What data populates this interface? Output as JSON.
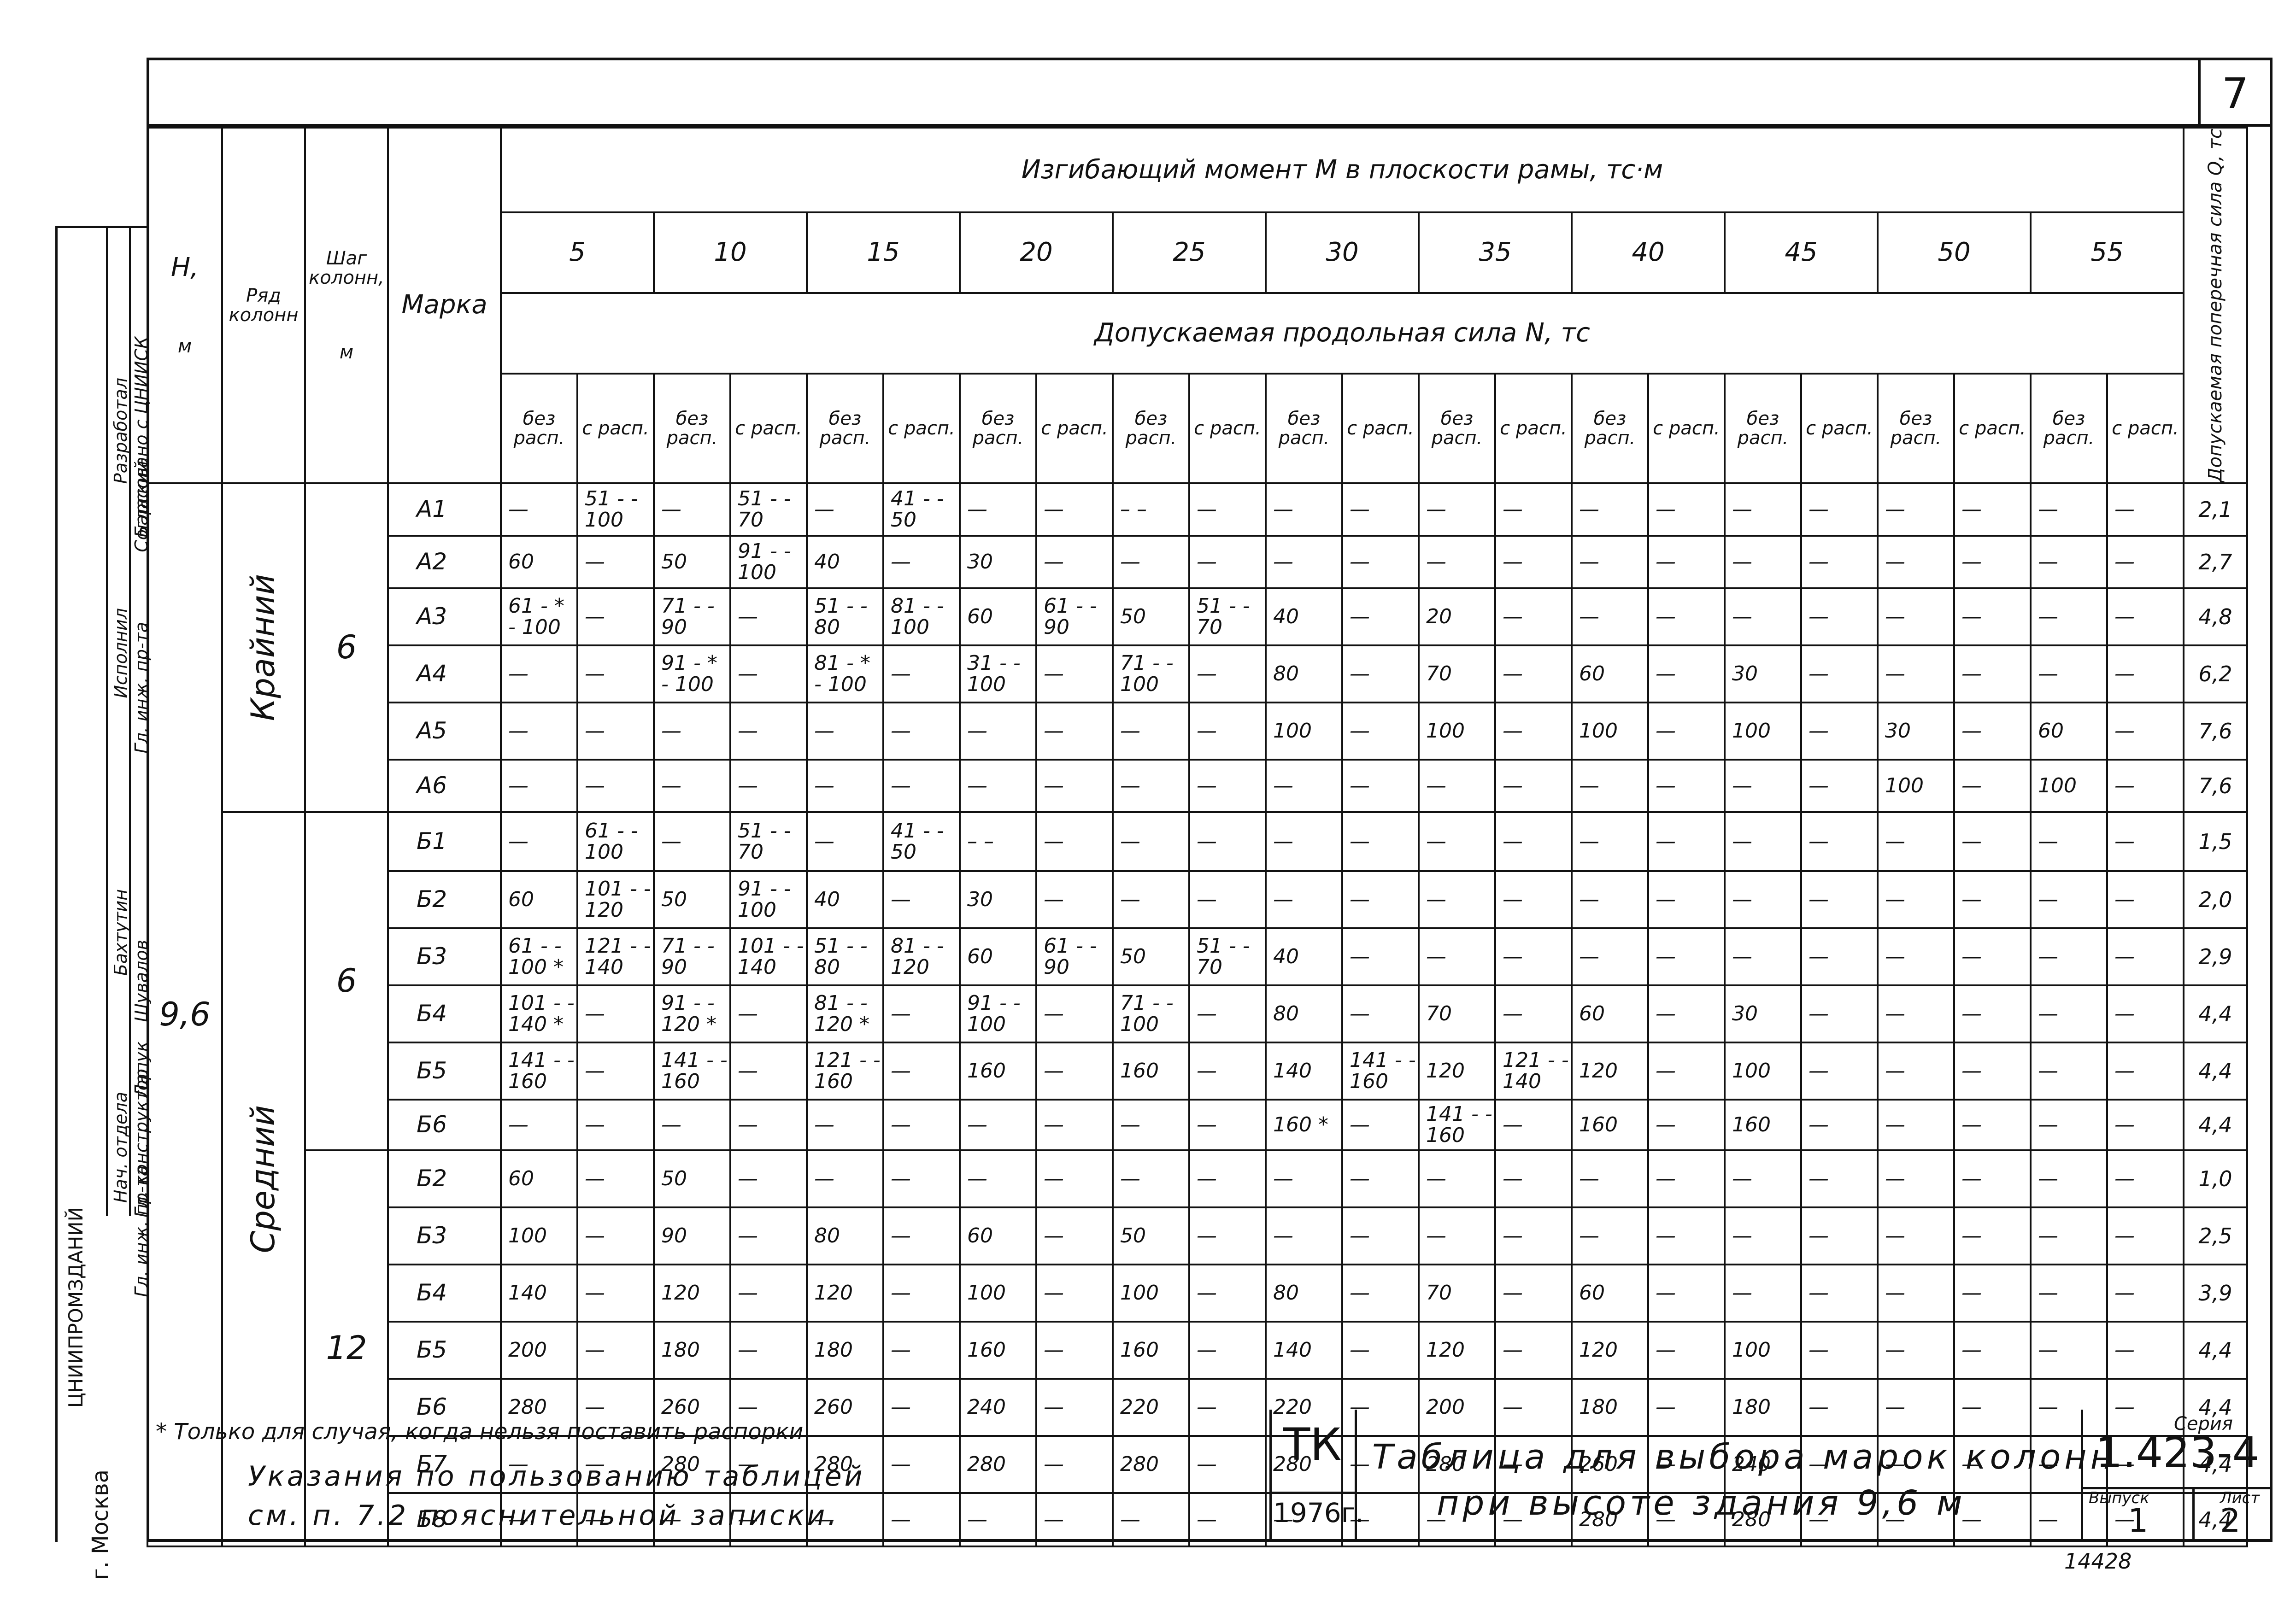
{
  "page_number": "7",
  "header": {
    "h_label": "H,",
    "h_unit": "м",
    "row_label": "Ряд колонн",
    "step_label": "Шаг колонн,",
    "step_unit": "м",
    "mark_label": "Марка",
    "moment_title": "Изгибающий момент M в плоскости рамы, тс·м",
    "force_title": "Допускаемая продольная сила N, тс",
    "q_title": "Допускаемая поперечная сила Q, тс",
    "moments": [
      "5",
      "10",
      "15",
      "20",
      "25",
      "30",
      "35",
      "40",
      "45",
      "50",
      "55"
    ],
    "sub_no": "без расп.",
    "sub_with": "с расп."
  },
  "h_value": "9,6",
  "groups": [
    {
      "row": "Крайний",
      "step": "6"
    },
    {
      "row": "Средний",
      "step": "6"
    },
    {
      "row": "",
      "step": "12"
    }
  ],
  "rows": [
    {
      "mark": "А1",
      "cells": [
        "—",
        "51 - - 100",
        "—",
        "51 - - 70",
        "—",
        "41 - - 50",
        "—",
        "—",
        "– –",
        "—",
        "—",
        "—",
        "—",
        "—",
        "—",
        "—",
        "—",
        "—",
        "—",
        "—",
        "—",
        "—"
      ],
      "q": "2,1"
    },
    {
      "mark": "А2",
      "cells": [
        "60",
        "—",
        "50",
        "91 - - 100",
        "40",
        "—",
        "30",
        "—",
        "—",
        "—",
        "—",
        "—",
        "—",
        "—",
        "—",
        "—",
        "—",
        "—",
        "—",
        "—",
        "—",
        "—"
      ],
      "q": "2,7"
    },
    {
      "mark": "А3",
      "cells": [
        "61 - * - 100",
        "—",
        "71 - - 90",
        "—",
        "51 - - 80",
        "81 - - 100",
        "60",
        "61 - - 90",
        "50",
        "51 - - 70",
        "40",
        "—",
        "20",
        "—",
        "—",
        "—",
        "—",
        "—",
        "—",
        "—",
        "—",
        "—"
      ],
      "q": "4,8"
    },
    {
      "mark": "А4",
      "cells": [
        "—",
        "—",
        "91 - * - 100",
        "—",
        "81 - * - 100",
        "—",
        "31 - - 100",
        "—",
        "71 - - 100",
        "—",
        "80",
        "—",
        "70",
        "—",
        "60",
        "—",
        "30",
        "—",
        "—",
        "—",
        "—",
        "—"
      ],
      "q": "6,2"
    },
    {
      "mark": "А5",
      "cells": [
        "—",
        "—",
        "—",
        "—",
        "—",
        "—",
        "—",
        "—",
        "—",
        "—",
        "100",
        "—",
        "100",
        "—",
        "100",
        "—",
        "100",
        "—",
        "30",
        "—",
        "60",
        "—"
      ],
      "q": "7,6"
    },
    {
      "mark": "А6",
      "cells": [
        "—",
        "—",
        "—",
        "—",
        "—",
        "—",
        "—",
        "—",
        "—",
        "—",
        "—",
        "—",
        "—",
        "—",
        "—",
        "—",
        "—",
        "—",
        "100",
        "—",
        "100",
        "—"
      ],
      "q": "7,6"
    },
    {
      "mark": "Б1",
      "cells": [
        "—",
        "61 - - 100",
        "—",
        "51 - - 70",
        "—",
        "41 - - 50",
        "– –",
        "—",
        "—",
        "—",
        "—",
        "—",
        "—",
        "—",
        "—",
        "—",
        "—",
        "—",
        "—",
        "—",
        "—",
        "—"
      ],
      "q": "1,5"
    },
    {
      "mark": "Б2",
      "cells": [
        "60",
        "101 - - 120",
        "50",
        "91 - - 100",
        "40",
        "—",
        "30",
        "—",
        "—",
        "—",
        "—",
        "—",
        "—",
        "—",
        "—",
        "—",
        "—",
        "—",
        "—",
        "—",
        "—",
        "—"
      ],
      "q": "2,0"
    },
    {
      "mark": "Б3",
      "cells": [
        "61 - - 100 *",
        "121 - - 140",
        "71 - - 90",
        "101 - - 140",
        "51 - - 80",
        "81 - - 120",
        "60",
        "61 - - 90",
        "50",
        "51 - - 70",
        "40",
        "—",
        "—",
        "—",
        "—",
        "—",
        "—",
        "—",
        "—",
        "—",
        "—",
        "—"
      ],
      "q": "2,9"
    },
    {
      "mark": "Б4",
      "cells": [
        "101 - - 140 *",
        "—",
        "91 - - 120 *",
        "—",
        "81 - - 120 *",
        "—",
        "91 - - 100",
        "—",
        "71 - - 100",
        "—",
        "80",
        "—",
        "70",
        "—",
        "60",
        "—",
        "30",
        "—",
        "—",
        "—",
        "—",
        "—"
      ],
      "q": "4,4"
    },
    {
      "mark": "Б5",
      "cells": [
        "141 - - 160",
        "—",
        "141 - - 160",
        "—",
        "121 - - 160",
        "—",
        "160",
        "—",
        "160",
        "—",
        "140",
        "141 - - 160",
        "120",
        "121 - - 140",
        "120",
        "—",
        "100",
        "—",
        "—",
        "—",
        "—",
        "—"
      ],
      "q": "4,4"
    },
    {
      "mark": "Б6",
      "cells": [
        "—",
        "—",
        "—",
        "—",
        "—",
        "—",
        "—",
        "—",
        "—",
        "—",
        "160 *",
        "—",
        "141 - - 160",
        "—",
        "160",
        "—",
        "160",
        "—",
        "—",
        "—",
        "—",
        "—"
      ],
      "q": "4,4"
    },
    {
      "mark": "Б2",
      "cells": [
        "60",
        "—",
        "50",
        "—",
        "—",
        "—",
        "—",
        "—",
        "—",
        "—",
        "—",
        "—",
        "—",
        "—",
        "—",
        "—",
        "—",
        "—",
        "—",
        "—",
        "—",
        "—"
      ],
      "q": "1,0"
    },
    {
      "mark": "Б3",
      "cells": [
        "100",
        "—",
        "90",
        "—",
        "80",
        "—",
        "60",
        "—",
        "50",
        "—",
        "—",
        "—",
        "—",
        "—",
        "—",
        "—",
        "—",
        "—",
        "—",
        "—",
        "—",
        "—"
      ],
      "q": "2,5"
    },
    {
      "mark": "Б4",
      "cells": [
        "140",
        "—",
        "120",
        "—",
        "120",
        "—",
        "100",
        "—",
        "100",
        "—",
        "80",
        "—",
        "70",
        "—",
        "60",
        "—",
        "—",
        "—",
        "—",
        "—",
        "—",
        "—"
      ],
      "q": "3,9"
    },
    {
      "mark": "Б5",
      "cells": [
        "200",
        "—",
        "180",
        "—",
        "180",
        "—",
        "160",
        "—",
        "160",
        "—",
        "140",
        "—",
        "120",
        "—",
        "120",
        "—",
        "100",
        "—",
        "—",
        "—",
        "—",
        "—"
      ],
      "q": "4,4"
    },
    {
      "mark": "Б6",
      "cells": [
        "280",
        "—",
        "260",
        "—",
        "260",
        "—",
        "240",
        "—",
        "220",
        "—",
        "220",
        "—",
        "200",
        "—",
        "180",
        "—",
        "180",
        "—",
        "—",
        "—",
        "—",
        "—"
      ],
      "q": "4,4"
    },
    {
      "mark": "Б7",
      "cells": [
        "—",
        "—",
        "280",
        "—",
        "280",
        "—",
        "280",
        "—",
        "280",
        "—",
        "280",
        "—",
        "280",
        "—",
        "260",
        "—",
        "240",
        "—",
        "—",
        "—",
        "—",
        "—"
      ],
      "q": "4,4"
    },
    {
      "mark": "Б8",
      "cells": [
        "—",
        "—",
        "—",
        "—",
        "—",
        "—",
        "—",
        "—",
        "—",
        "—",
        "—",
        "—",
        "—",
        "—",
        "280",
        "—",
        "280",
        "—",
        "—",
        "—",
        "—",
        "—"
      ],
      "q": "4,4"
    }
  ],
  "footnote": "* Только для случая, когда нельзя поставить распорки",
  "instructions_line1": "Указания по пользованию таблицей",
  "instructions_line2": "см. п. 7.2 пояснительной записки.",
  "stamp": {
    "org": "ТК",
    "year": "1976г.",
    "title_line1": "Таблица для выбора марок колонн",
    "title_line2": "при высоте здания 9,6 м",
    "series_label": "Серия",
    "series_value": "1.423-4",
    "issue_label": "Выпуск",
    "issue_value": "1",
    "sheet_label": "Лист",
    "sheet_value": "2",
    "inventory": "14428"
  },
  "sidebar": {
    "roles": [
      "Разработал",
      "Согласовано с ЦНИИСК",
      "Исполнил",
      "Гл. инж. пр-та",
      "Нач. отдела",
      "Гл. конструктор",
      "Гл. инж. пр-та"
    ],
    "names": [
      "Барский",
      "Бахтутин",
      "Шувалов",
      "Лапук"
    ],
    "org": "ЦНИИПРОМЗДАНИЙ",
    "city": "г. Москва"
  }
}
